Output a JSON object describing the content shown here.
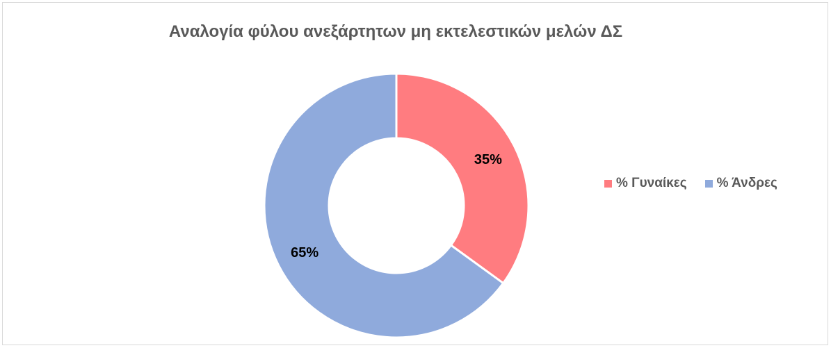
{
  "chart_data": {
    "type": "pie",
    "variant": "donut",
    "title": "Αναλογία φύλου ανεξάρτητων μη εκτελεστικών μελών ΔΣ",
    "slices": [
      {
        "label": "% Γυναίκες",
        "value": 35,
        "display": "35%",
        "color": "#ff7c80"
      },
      {
        "label": "% Άνδρες",
        "value": 65,
        "display": "65%",
        "color": "#8faadc"
      }
    ],
    "legend_position": "right"
  }
}
